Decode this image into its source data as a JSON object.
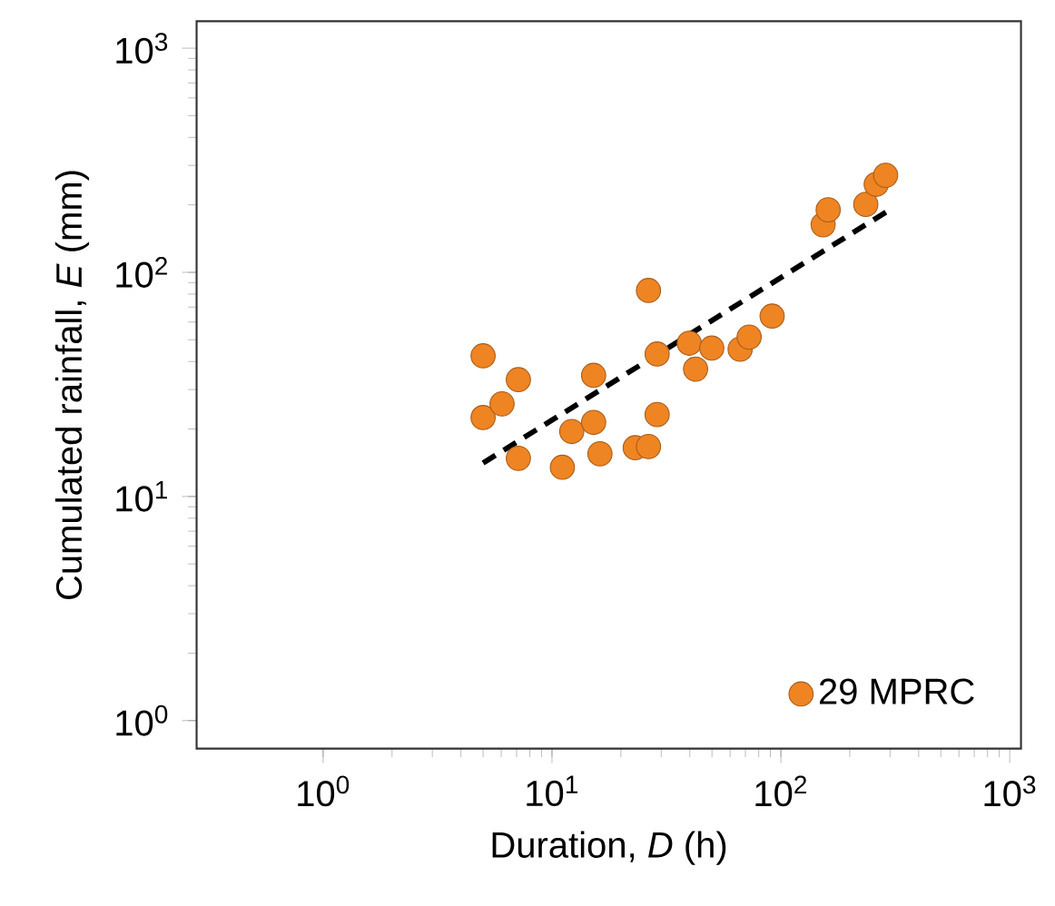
{
  "chart_data": {
    "type": "scatter",
    "xlabel": "Duration, *D* (h)",
    "ylabel": "Cumulated rainfall, *E* (mm)",
    "log": "xy",
    "legend": "bottom right",
    "xlim": [
      0.28,
      1120
    ],
    "ylim": [
      0.75,
      1320
    ],
    "xticks": [
      {
        "value": 1,
        "label": "10$^{0}$"
      },
      {
        "value": 10,
        "label": "10$^{1}$"
      },
      {
        "value": 100,
        "label": "10$^{2}$"
      },
      {
        "value": 1000,
        "label": "10$^{3}$"
      }
    ],
    "yticks": [
      {
        "value": 1,
        "label": "10$^{0}$"
      },
      {
        "value": 10,
        "label": "10$^{1}$"
      },
      {
        "value": 100,
        "label": "10$^{2}$"
      },
      {
        "value": 1000,
        "label": "10$^{3}$"
      }
    ],
    "series": [
      {
        "name": "29 MPRC",
        "marker": "circle",
        "color": "#ef8423",
        "x": [
          5.0,
          5.0,
          6.05,
          7.13,
          7.13,
          11.1,
          12.2,
          15.2,
          15.2,
          16.2,
          23.1,
          26.4,
          26.4,
          28.8,
          28.8,
          39.8,
          42.4,
          49.9,
          66.4,
          72.7,
          91.6,
          153,
          161,
          235,
          261,
          287
        ],
        "values": [
          42.4,
          22.5,
          25.9,
          33.2,
          14.8,
          13.5,
          19.5,
          34.7,
          21.4,
          15.5,
          16.5,
          16.7,
          83,
          43.2,
          23.2,
          48.3,
          37.0,
          45.9,
          45.4,
          51.4,
          63.8,
          163,
          190,
          201,
          247,
          271
        ]
      },
      {
        "type": "line",
        "color": "#000000",
        "line_style": "dashed",
        "marker": "none",
        "x": [
          5.0,
          296
        ],
        "values": [
          14.1,
          189
        ]
      }
    ]
  }
}
